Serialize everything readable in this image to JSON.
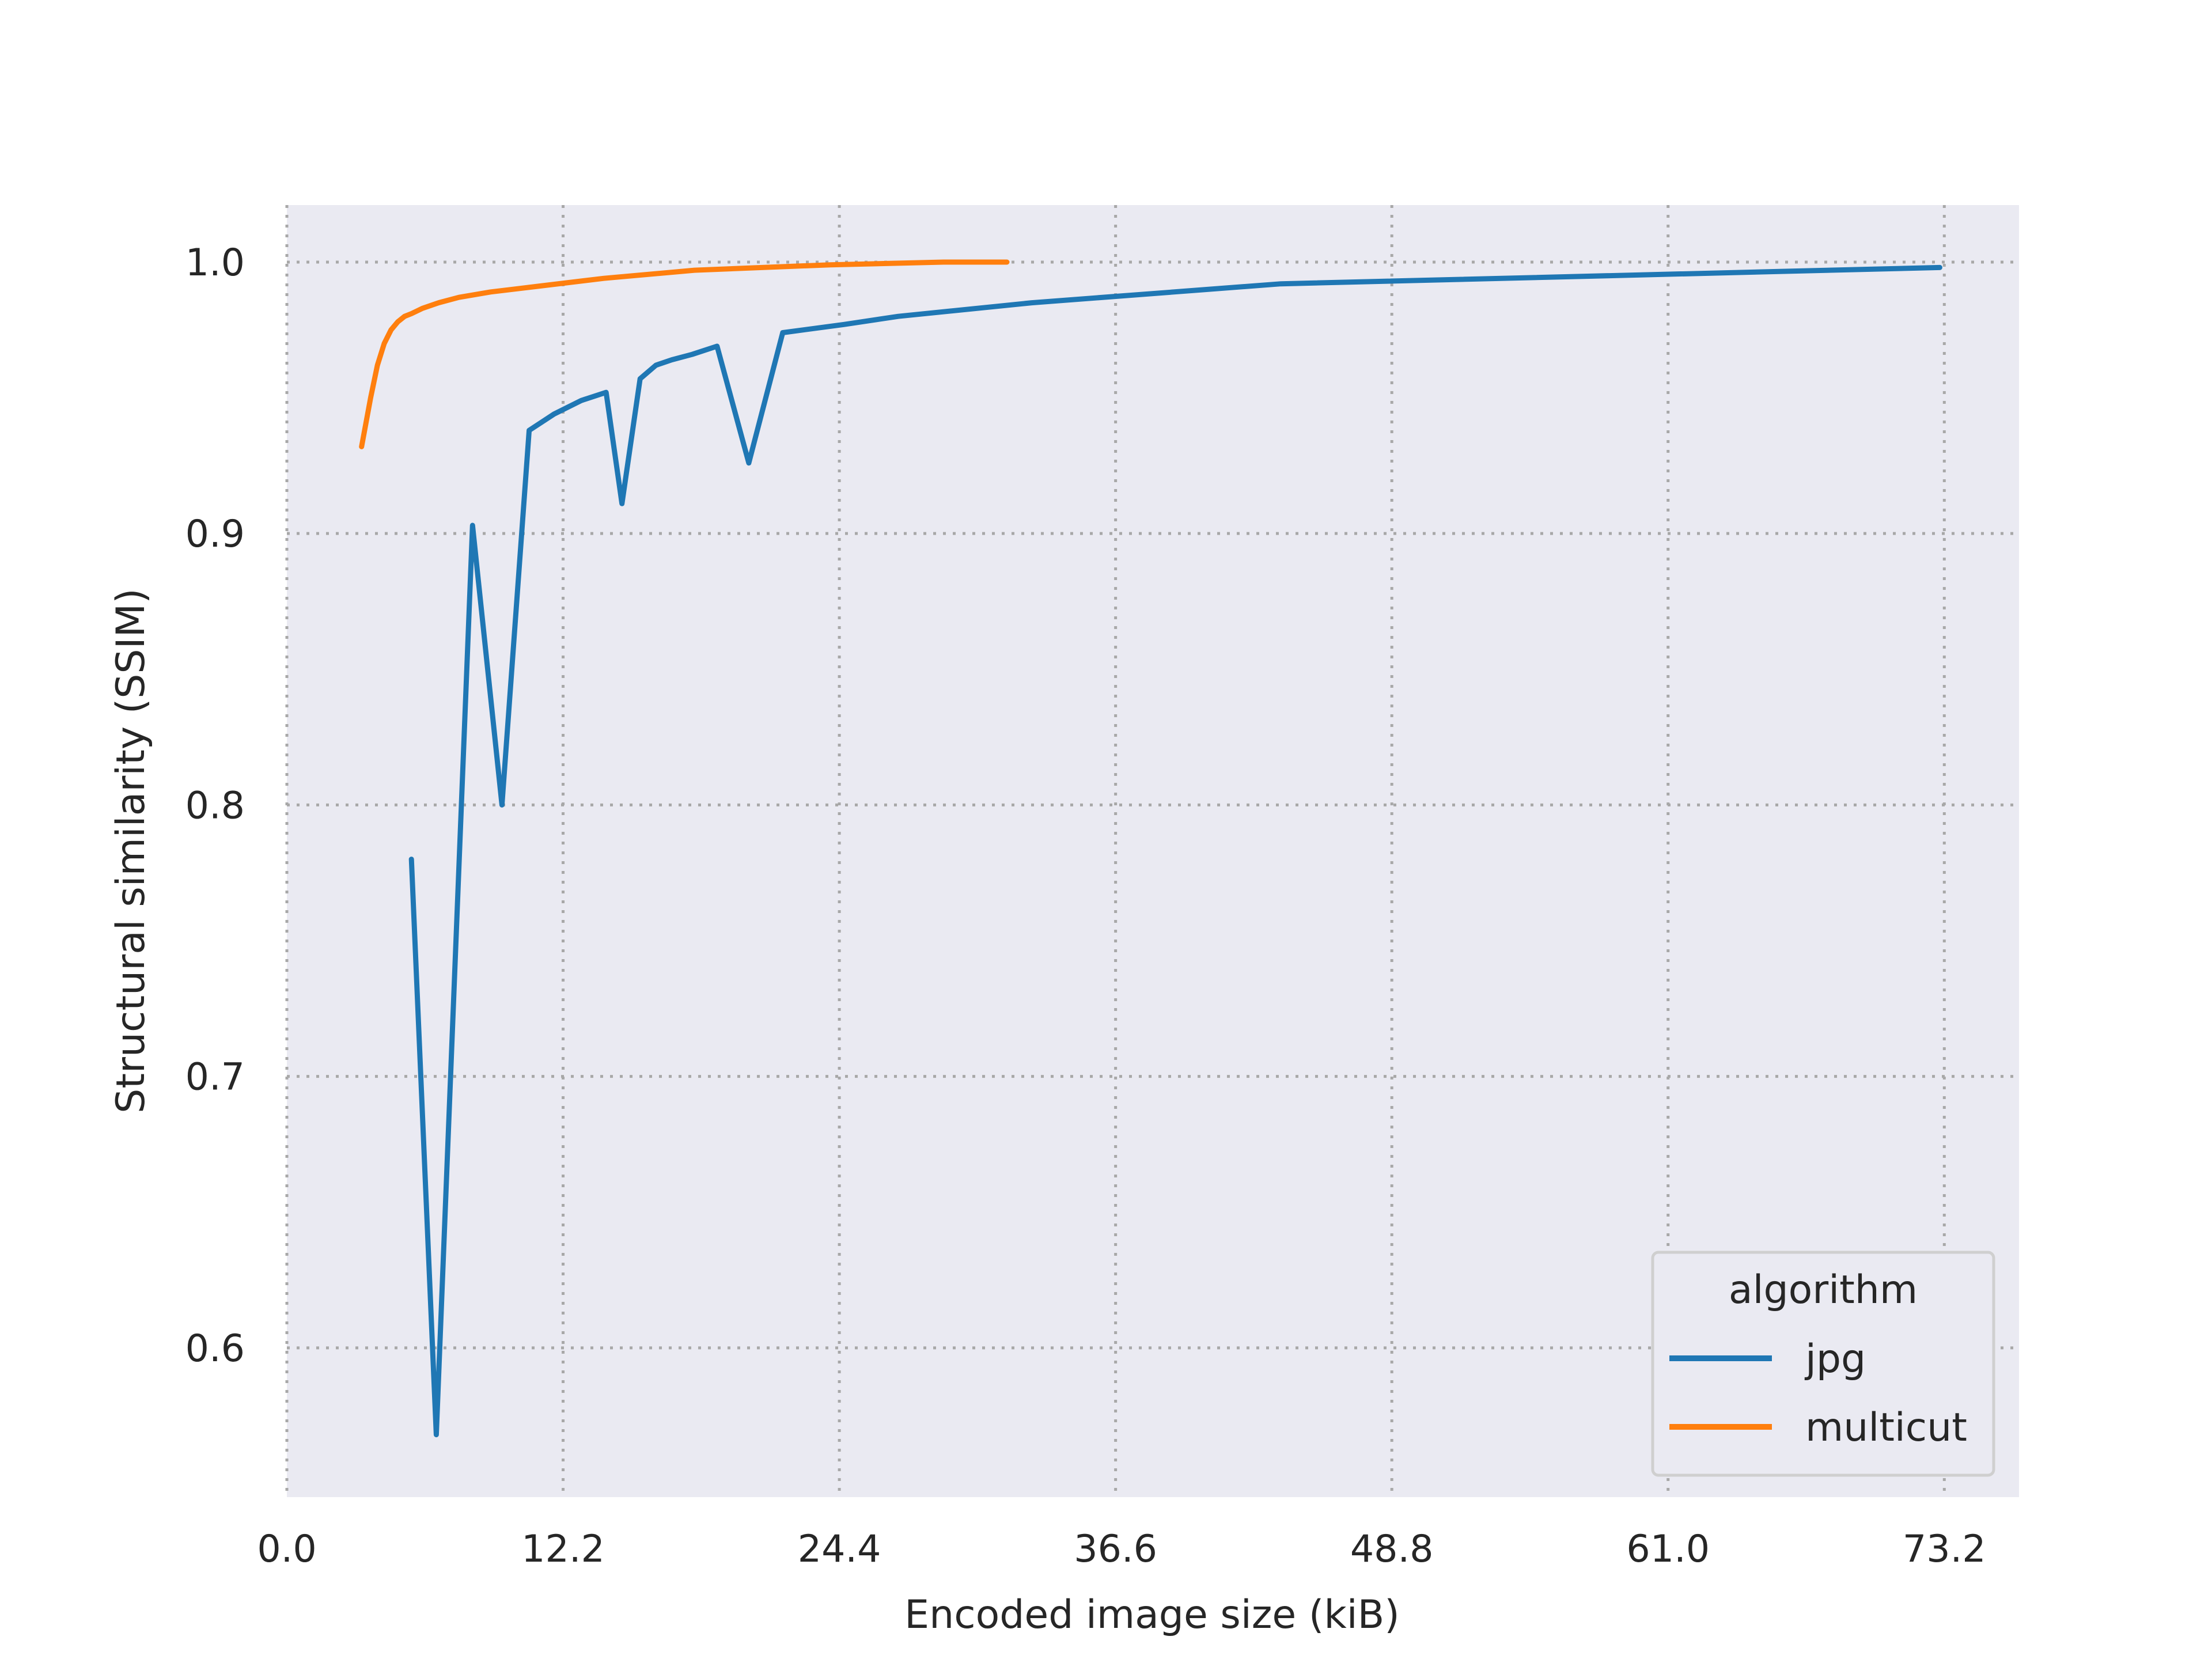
{
  "chart_data": {
    "type": "line",
    "xlabel": "Encoded image size (kiB)",
    "ylabel": "Structural similarity (SSIM)",
    "xlim": [
      0,
      76.5
    ],
    "ylim": [
      0.545,
      1.021
    ],
    "x_ticks": [
      "0.0",
      "12.2",
      "24.4",
      "36.6",
      "48.8",
      "61.0",
      "73.2"
    ],
    "y_ticks": [
      "0.6",
      "0.7",
      "0.8",
      "0.9",
      "1.0"
    ],
    "grid": true,
    "legend": {
      "title": "algorithm",
      "placement": "lower-right"
    },
    "colors": {
      "jpg": "#1f77b4",
      "multicut": "#ff7f0e",
      "background": "#eaeaf2"
    },
    "series": [
      {
        "name": "jpg",
        "x": [
          5.5,
          6.6,
          8.2,
          9.5,
          10.7,
          11.8,
          13.0,
          14.1,
          14.8,
          15.6,
          16.3,
          17.0,
          17.9,
          19.0,
          20.4,
          21.9,
          24.6,
          27.0,
          32.9,
          43.9,
          73.0
        ],
        "y": [
          0.78,
          0.568,
          0.903,
          0.8,
          0.938,
          0.944,
          0.949,
          0.952,
          0.911,
          0.957,
          0.962,
          0.964,
          0.966,
          0.969,
          0.926,
          0.974,
          0.977,
          0.98,
          0.985,
          0.992,
          0.998
        ]
      },
      {
        "name": "multicut",
        "x": [
          3.3,
          3.7,
          4.0,
          4.3,
          4.6,
          4.9,
          5.2,
          5.5,
          6.0,
          6.7,
          7.6,
          9.0,
          11.0,
          14.0,
          18.0,
          24.0,
          29.0,
          31.8
        ],
        "y": [
          0.932,
          0.95,
          0.962,
          0.97,
          0.975,
          0.978,
          0.98,
          0.981,
          0.983,
          0.985,
          0.987,
          0.989,
          0.991,
          0.994,
          0.997,
          0.999,
          1.0,
          1.0
        ]
      }
    ]
  }
}
